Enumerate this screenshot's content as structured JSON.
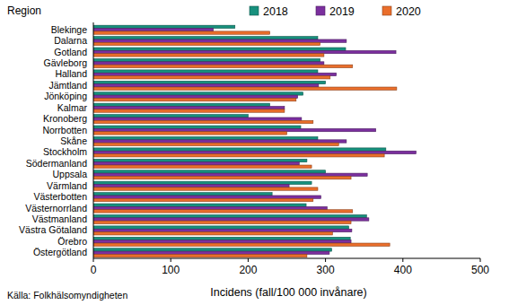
{
  "chart_data": {
    "type": "bar",
    "orientation": "horizontal",
    "ylabel": "Region",
    "xlabel": "Incidens (fall/100 000 invånare)",
    "source": "Källa: Folkhälsomyndigheten",
    "categories": [
      "Blekinge",
      "Dalarna",
      "Gotland",
      "Gävleborg",
      "Halland",
      "Jämtland",
      "Jönköping",
      "Kalmar",
      "Kronoberg",
      "Norrbotten",
      "Skåne",
      "Stockholm",
      "Södermanland",
      "Uppsala",
      "Värmland",
      "Västerbotten",
      "Västernorrland",
      "Västmanland",
      "Västra Götaland",
      "Örebro",
      "Östergötland"
    ],
    "series": [
      {
        "name": "2018",
        "color": "#17907d",
        "values": [
          183,
          290,
          326,
          293,
          290,
          300,
          271,
          228,
          200,
          268,
          290,
          378,
          276,
          300,
          282,
          231,
          275,
          353,
          330,
          332,
          308
        ]
      },
      {
        "name": "2019",
        "color": "#7b2f9e",
        "values": [
          155,
          327,
          391,
          298,
          314,
          291,
          264,
          247,
          269,
          365,
          327,
          417,
          266,
          354,
          253,
          294,
          302,
          356,
          334,
          333,
          305
        ]
      },
      {
        "name": "2020",
        "color": "#ea6e2b",
        "values": [
          228,
          293,
          298,
          335,
          306,
          392,
          262,
          247,
          284,
          250,
          317,
          376,
          282,
          333,
          290,
          284,
          335,
          333,
          309,
          383,
          276
        ]
      }
    ],
    "xlim": [
      0,
      500
    ],
    "xticks": [
      0,
      100,
      200,
      300,
      400,
      500
    ],
    "legend": "top",
    "grid": false
  }
}
